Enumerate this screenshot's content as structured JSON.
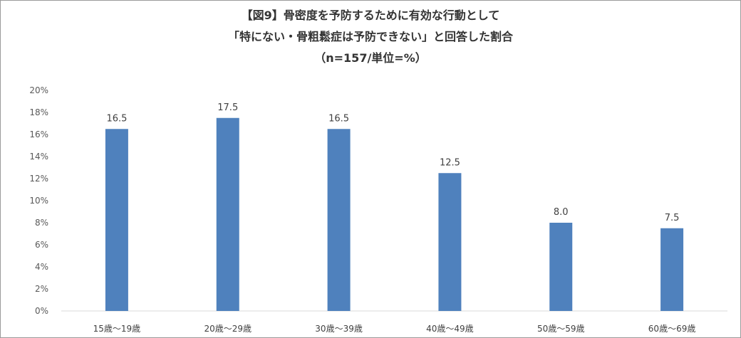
{
  "chart_data": {
    "type": "bar",
    "title": "【図9】骨密度を予防するために有効な行動として",
    "subtitle": "「特にない・骨粗鬆症は予防できない」と回答した割合",
    "note": "（n=157/単位=%）",
    "categories": [
      "15歳～19歳",
      "20歳～29歳",
      "30歳～39歳",
      "40歳～49歳",
      "50歳～59歳",
      "60歳～69歳"
    ],
    "values": [
      16.5,
      17.5,
      16.5,
      12.5,
      8.0,
      7.5
    ],
    "value_labels": [
      "16.5",
      "17.5",
      "16.5",
      "12.5",
      "8.0",
      "7.5"
    ],
    "yticks": [
      "0%",
      "2%",
      "4%",
      "6%",
      "8%",
      "10%",
      "12%",
      "14%",
      "16%",
      "18%",
      "20%"
    ],
    "ylim": [
      0,
      20
    ],
    "grid": false,
    "legend": "none",
    "bar_color": "#4f81bd"
  }
}
